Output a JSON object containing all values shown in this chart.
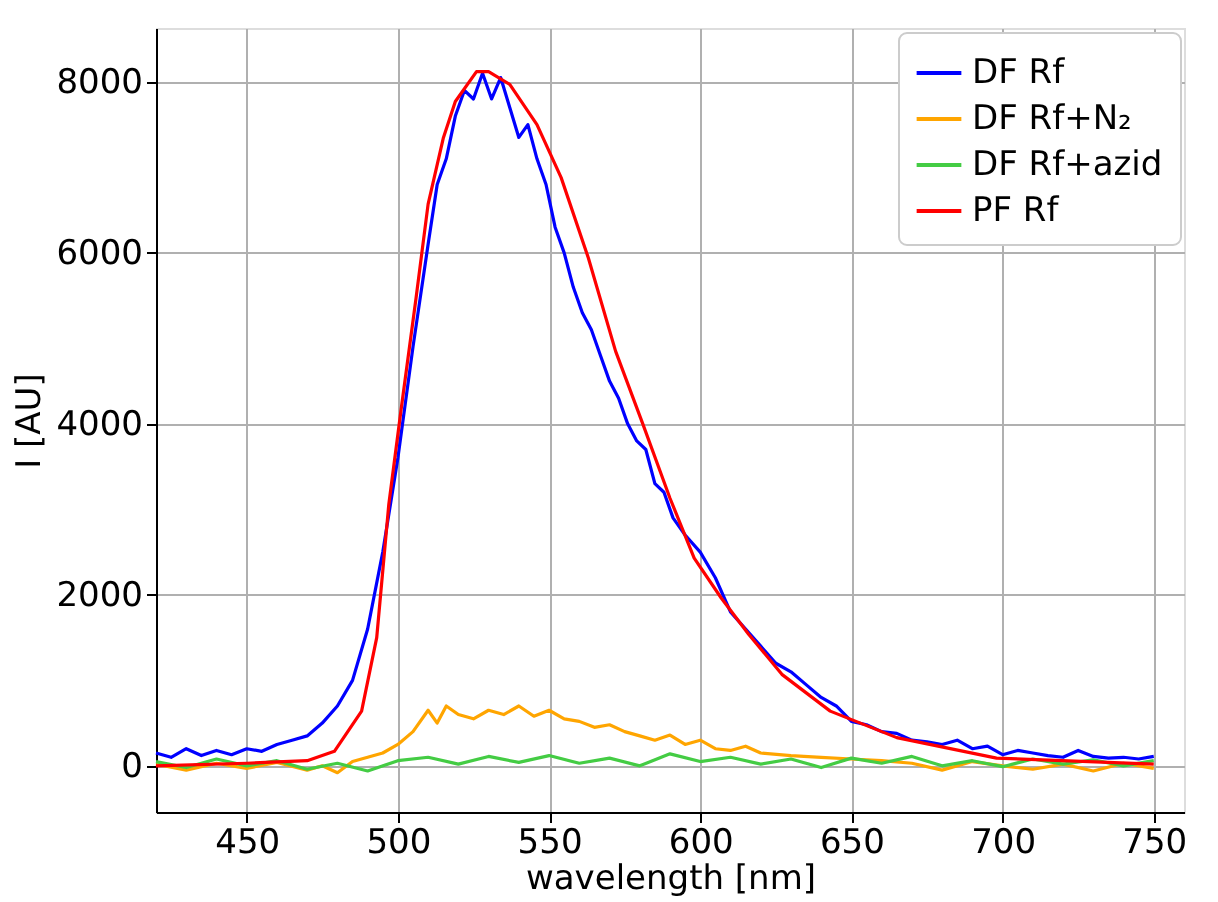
{
  "chart_data": {
    "type": "line",
    "xlabel": "wavelength [nm]",
    "ylabel": "I [AU]",
    "xlim": [
      420,
      760
    ],
    "ylim": [
      -540,
      8630
    ],
    "xticks": [
      450,
      500,
      550,
      600,
      650,
      700,
      750
    ],
    "yticks": [
      0,
      2000,
      4000,
      6000,
      8000
    ],
    "grid": true,
    "legend": "top right",
    "line_style": "solid",
    "marker": "none",
    "series": [
      {
        "name": "DF Rf",
        "color": "#0000ff",
        "x": [
          420,
          425,
          430,
          435,
          440,
          445,
          450,
          455,
          460,
          465,
          470,
          475,
          480,
          485,
          490,
          495,
          500,
          505,
          510,
          513,
          516,
          519,
          522,
          525,
          528,
          531,
          534,
          537,
          540,
          543,
          546,
          549,
          552,
          555,
          558,
          561,
          564,
          567,
          570,
          573,
          576,
          579,
          582,
          585,
          588,
          591,
          595,
          600,
          605,
          610,
          615,
          620,
          625,
          630,
          635,
          640,
          645,
          650,
          655,
          660,
          665,
          670,
          675,
          680,
          685,
          690,
          695,
          700,
          705,
          710,
          715,
          720,
          725,
          730,
          735,
          740,
          745,
          750
        ],
        "values": [
          150,
          100,
          200,
          120,
          180,
          130,
          200,
          170,
          250,
          300,
          350,
          500,
          700,
          1000,
          1600,
          2500,
          3600,
          4900,
          6100,
          6800,
          7100,
          7600,
          7900,
          7800,
          8100,
          7800,
          8050,
          7700,
          7350,
          7500,
          7100,
          6800,
          6300,
          6000,
          5600,
          5300,
          5100,
          4800,
          4500,
          4300,
          4000,
          3800,
          3700,
          3300,
          3200,
          2900,
          2700,
          2500,
          2200,
          1800,
          1600,
          1400,
          1200,
          1100,
          950,
          800,
          700,
          520,
          480,
          400,
          380,
          300,
          280,
          250,
          300,
          200,
          230,
          130,
          180,
          150,
          120,
          100,
          180,
          110,
          90,
          100,
          80,
          110
        ]
      },
      {
        "name": "DF Rf+N₂",
        "color": "#ffa500",
        "x": [
          420,
          430,
          440,
          450,
          460,
          470,
          475,
          480,
          485,
          490,
          495,
          500,
          505,
          510,
          513,
          516,
          520,
          525,
          530,
          535,
          540,
          545,
          550,
          555,
          560,
          565,
          570,
          575,
          580,
          585,
          590,
          595,
          600,
          605,
          610,
          615,
          620,
          630,
          640,
          650,
          660,
          670,
          680,
          690,
          700,
          710,
          720,
          730,
          740,
          750
        ],
        "values": [
          20,
          -50,
          30,
          -30,
          40,
          -50,
          0,
          -80,
          50,
          100,
          150,
          250,
          400,
          650,
          500,
          700,
          600,
          550,
          650,
          600,
          700,
          580,
          650,
          550,
          520,
          450,
          480,
          400,
          350,
          300,
          360,
          250,
          300,
          200,
          180,
          230,
          150,
          120,
          100,
          80,
          60,
          30,
          -50,
          50,
          0,
          -40,
          20,
          -60,
          30,
          -30
        ]
      },
      {
        "name": "DF Rf+azid",
        "color": "#44cc44",
        "x": [
          420,
          430,
          440,
          450,
          460,
          470,
          480,
          490,
          500,
          510,
          520,
          530,
          540,
          550,
          560,
          570,
          580,
          590,
          600,
          610,
          620,
          630,
          640,
          650,
          660,
          670,
          680,
          690,
          700,
          710,
          720,
          730,
          740,
          750
        ],
        "values": [
          50,
          -20,
          80,
          0,
          60,
          -40,
          30,
          -60,
          60,
          100,
          20,
          110,
          40,
          120,
          30,
          90,
          0,
          140,
          50,
          100,
          20,
          80,
          -20,
          90,
          30,
          110,
          0,
          60,
          -10,
          80,
          20,
          70,
          0,
          60
        ]
      },
      {
        "name": "PF Rf",
        "color": "#ff0000",
        "x": [
          420,
          450,
          470,
          479,
          488,
          493,
          497,
          501,
          506,
          510,
          515,
          519,
          526,
          530,
          537,
          546,
          554,
          563,
          572,
          581,
          590,
          598,
          607,
          616,
          627,
          643,
          665,
          698,
          750
        ],
        "values": [
          0,
          30,
          60,
          170,
          640,
          1500,
          3060,
          4150,
          5470,
          6570,
          7340,
          7770,
          8120,
          8120,
          7970,
          7500,
          6880,
          5940,
          4850,
          4000,
          3130,
          2430,
          1960,
          1540,
          1070,
          640,
          330,
          90,
          20
        ]
      }
    ]
  }
}
